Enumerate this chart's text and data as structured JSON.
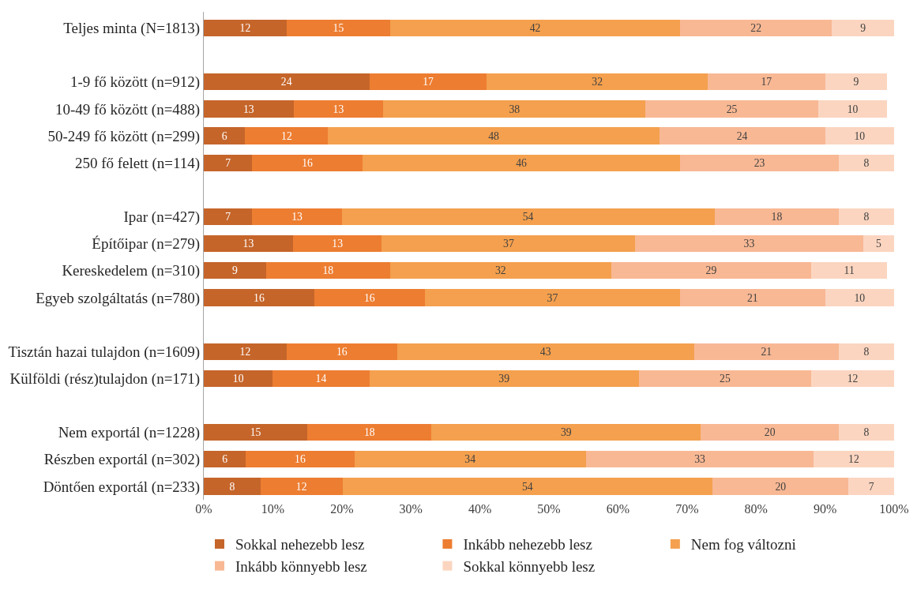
{
  "chart_data": {
    "type": "bar",
    "orientation": "horizontal",
    "stacked": true,
    "legend": "bottom",
    "categories": [
      "Teljes minta (N=1813)",
      null,
      "1-9 fő között (n=912)",
      "10-49 fő között (n=488)",
      "50-249 fő között (n=299)",
      "250 fő felett (n=114)",
      null,
      "Ipar (n=427)",
      "Építőipar (n=279)",
      "Kereskedelem (n=310)",
      "Egyeb szolgáltatás (n=780)",
      null,
      "Tisztán hazai tulajdon (n=1609)",
      "Külföldi (rész)tulajdon (n=171)",
      null,
      "Nem exportál (n=1228)",
      "Részben exportál (n=302)",
      "Döntően exportál (n=233)"
    ],
    "xlim": [
      0,
      100
    ],
    "xticks": [
      {
        "value": 0,
        "label": "0%"
      },
      {
        "value": 10,
        "label": "10%"
      },
      {
        "value": 20,
        "label": "20%"
      },
      {
        "value": 30,
        "label": "30%"
      },
      {
        "value": 40,
        "label": "40%"
      },
      {
        "value": 50,
        "label": "50%"
      },
      {
        "value": 60,
        "label": "60%"
      },
      {
        "value": 70,
        "label": "70%"
      },
      {
        "value": 80,
        "label": "80%"
      },
      {
        "value": 90,
        "label": "90%"
      },
      {
        "value": 100,
        "label": "100%"
      }
    ],
    "series": [
      {
        "name": "Sokkal nehezebb lesz",
        "color": "#c5652a",
        "values": [
          12,
          null,
          24,
          13,
          6,
          7,
          null,
          7,
          12.9,
          9,
          16,
          null,
          12,
          10,
          null,
          15,
          6.1,
          8.2
        ],
        "value_labels": [
          "12",
          null,
          "24",
          "13",
          "6",
          "7",
          null,
          "7",
          "13",
          "9",
          "16",
          null,
          "12",
          "10",
          null,
          "15",
          "6",
          "8"
        ]
      },
      {
        "name": "Inkább nehezebb lesz",
        "color": "#ed7d31",
        "values": [
          15,
          null,
          17,
          13,
          12,
          16,
          null,
          13,
          12.9,
          18,
          16,
          null,
          16,
          14,
          null,
          18,
          15.7,
          11.9
        ],
        "value_labels": [
          "15",
          null,
          "17",
          "13",
          "12",
          "16",
          null,
          "13",
          "13",
          "18",
          "16",
          null,
          "16",
          "14",
          null,
          "18",
          "16",
          "12"
        ]
      },
      {
        "name": "Nem fog változni",
        "color": "#f4a04e",
        "values": [
          42,
          null,
          32,
          38,
          48,
          46,
          null,
          54,
          36.7,
          32,
          37,
          null,
          43,
          39,
          null,
          39,
          33.6,
          53.6
        ],
        "value_labels": [
          "42",
          null,
          "32",
          "38",
          "48",
          "46",
          null,
          "54",
          "37",
          "32",
          "37",
          null,
          "43",
          "39",
          null,
          "39",
          "34",
          "54"
        ]
      },
      {
        "name": "Inkább könnyebb lesz",
        "color": "#f8b894",
        "values": [
          22,
          null,
          17,
          25,
          24,
          23,
          null,
          18,
          33,
          29,
          21,
          null,
          21,
          25,
          null,
          20,
          32.9,
          19.7
        ],
        "value_labels": [
          "22",
          null,
          "17",
          "25",
          "24",
          "23",
          null,
          "18",
          "33",
          "29",
          "21",
          null,
          "21",
          "25",
          null,
          "20",
          "33",
          "20"
        ]
      },
      {
        "name": "Sokkal könnyebb lesz",
        "color": "#fbd5c0",
        "values": [
          9,
          null,
          9,
          10,
          10,
          8,
          null,
          8,
          4.5,
          11,
          10,
          null,
          8,
          12,
          null,
          8,
          11.7,
          6.6
        ],
        "value_labels": [
          "9",
          null,
          "9",
          "10",
          "10",
          "8",
          null,
          "8",
          "5",
          "11",
          "10",
          null,
          "8",
          "12",
          null,
          "8",
          "12",
          "7"
        ]
      }
    ]
  }
}
